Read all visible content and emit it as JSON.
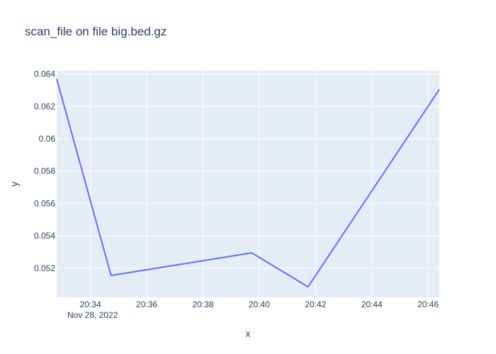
{
  "chart_data": {
    "type": "line",
    "title": "scan_file on file big.bed.gz",
    "xlabel": "x",
    "ylabel": "y",
    "x_axis_type": "date",
    "x_date_label": "Nov 28, 2022",
    "x_range": [
      "2022-11-28 20:32:48",
      "2022-11-28 20:46:24"
    ],
    "x_ticks": [
      "20:34",
      "20:36",
      "20:38",
      "20:40",
      "20:42",
      "20:44",
      "20:46"
    ],
    "ylim": [
      0.0502,
      0.0642
    ],
    "y_ticks": [
      "0.052",
      "0.054",
      "0.056",
      "0.058",
      "0.06",
      "0.062",
      "0.064"
    ],
    "grid": true,
    "legend": "none",
    "series": [
      {
        "color": "#636efa",
        "x": [
          "2022-11-28 20:32:48",
          "2022-11-28 20:34:44",
          "2022-11-28 20:39:44",
          "2022-11-28 20:41:44",
          "2022-11-28 20:46:24"
        ],
        "y": [
          0.0637,
          0.05155,
          0.05295,
          0.05085,
          0.06305
        ]
      }
    ],
    "colors": {
      "plot_bg": "#e5ecf6",
      "grid": "#ffffff",
      "text": "#2a3f5f"
    }
  }
}
